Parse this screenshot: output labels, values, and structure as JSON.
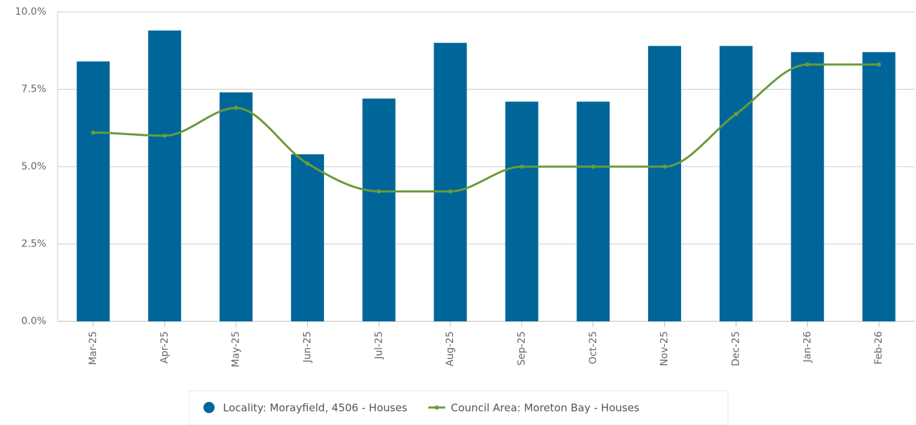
{
  "chart_data": {
    "type": "bar",
    "categories": [
      "Mar-25",
      "Apr-25",
      "May-25",
      "Jun-25",
      "Jul-25",
      "Aug-25",
      "Sep-25",
      "Oct-25",
      "Nov-25",
      "Dec-25",
      "Jan-26",
      "Feb-26"
    ],
    "series": [
      {
        "name": "Locality: Morayfield, 4506 - Houses",
        "type": "bar",
        "color": "#00669a",
        "values": [
          8.4,
          9.4,
          7.4,
          5.4,
          7.2,
          9.0,
          7.1,
          7.1,
          8.9,
          8.9,
          8.7,
          8.7
        ]
      },
      {
        "name": "Council Area: Moreton Bay - Houses",
        "type": "line",
        "color": "#6a9a3a",
        "values": [
          6.1,
          6.0,
          6.9,
          5.1,
          4.2,
          4.2,
          5.0,
          5.0,
          5.0,
          6.7,
          8.3,
          8.3
        ]
      }
    ],
    "ylim": [
      0,
      10
    ],
    "yticks": [
      {
        "value": 0,
        "label": "0.0%"
      },
      {
        "value": 2.5,
        "label": "2.5%"
      },
      {
        "value": 5,
        "label": "5.0%"
      },
      {
        "value": 7.5,
        "label": "7.5%"
      },
      {
        "value": 10,
        "label": "10.0%"
      }
    ],
    "grid": true
  }
}
